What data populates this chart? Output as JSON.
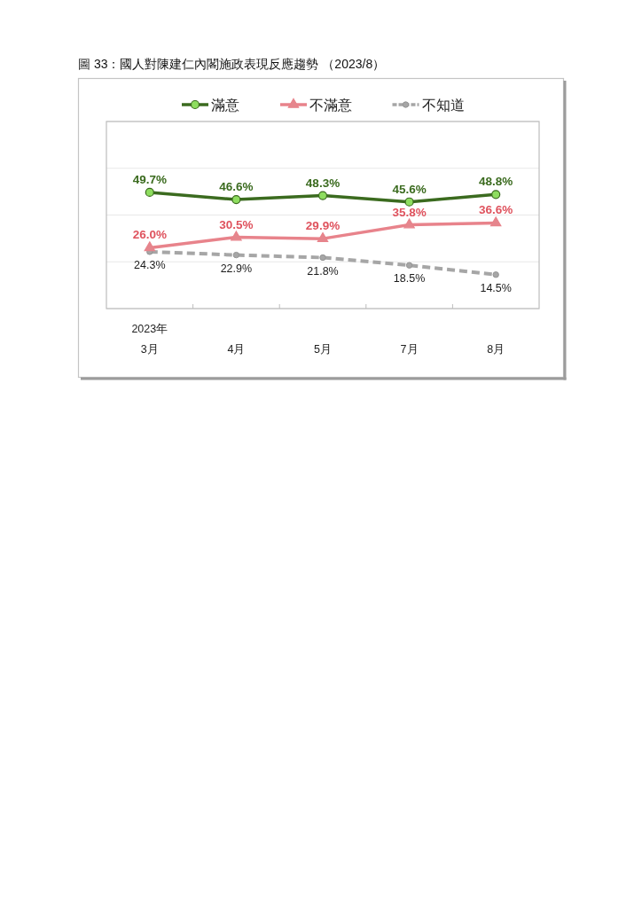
{
  "chart_data": {
    "type": "line",
    "title": "圖 33：國人對陳建仁內閣施政表現反應趨勢 （2023/8）",
    "categories": [
      "2023年\n3月",
      "4月",
      "5月",
      "7月",
      "8月"
    ],
    "series": [
      {
        "name": "滿意",
        "color": "#3b6b1f",
        "values": [
          49.7,
          46.6,
          48.3,
          45.6,
          48.8
        ],
        "value_labels": [
          "49.7%",
          "46.6%",
          "48.3%",
          "45.6%",
          "48.8%"
        ],
        "marker": "circle"
      },
      {
        "name": "不滿意",
        "color": "#e8838b",
        "values": [
          26.0,
          30.5,
          29.9,
          35.8,
          36.6
        ],
        "value_labels": [
          "26.0%",
          "30.5%",
          "29.9%",
          "35.8%",
          "36.6%"
        ],
        "marker": "triangle"
      },
      {
        "name": "不知道",
        "color": "#a6a6a6",
        "values": [
          24.3,
          22.9,
          21.8,
          18.5,
          14.5
        ],
        "value_labels": [
          "24.3%",
          "22.9%",
          "21.8%",
          "18.5%",
          "14.5%"
        ],
        "marker": "circle",
        "line_style": "dashed"
      }
    ],
    "ylim": [
      0,
      80
    ],
    "yticks": [
      {
        "value": 0,
        "label": null
      },
      {
        "value": 20,
        "label": null
      },
      {
        "value": 40,
        "label": null
      },
      {
        "value": 60,
        "label": null
      },
      {
        "value": 80,
        "label": null
      }
    ],
    "grid": "y",
    "tick_labels": "x",
    "legend": "top",
    "line_style": "solid"
  }
}
